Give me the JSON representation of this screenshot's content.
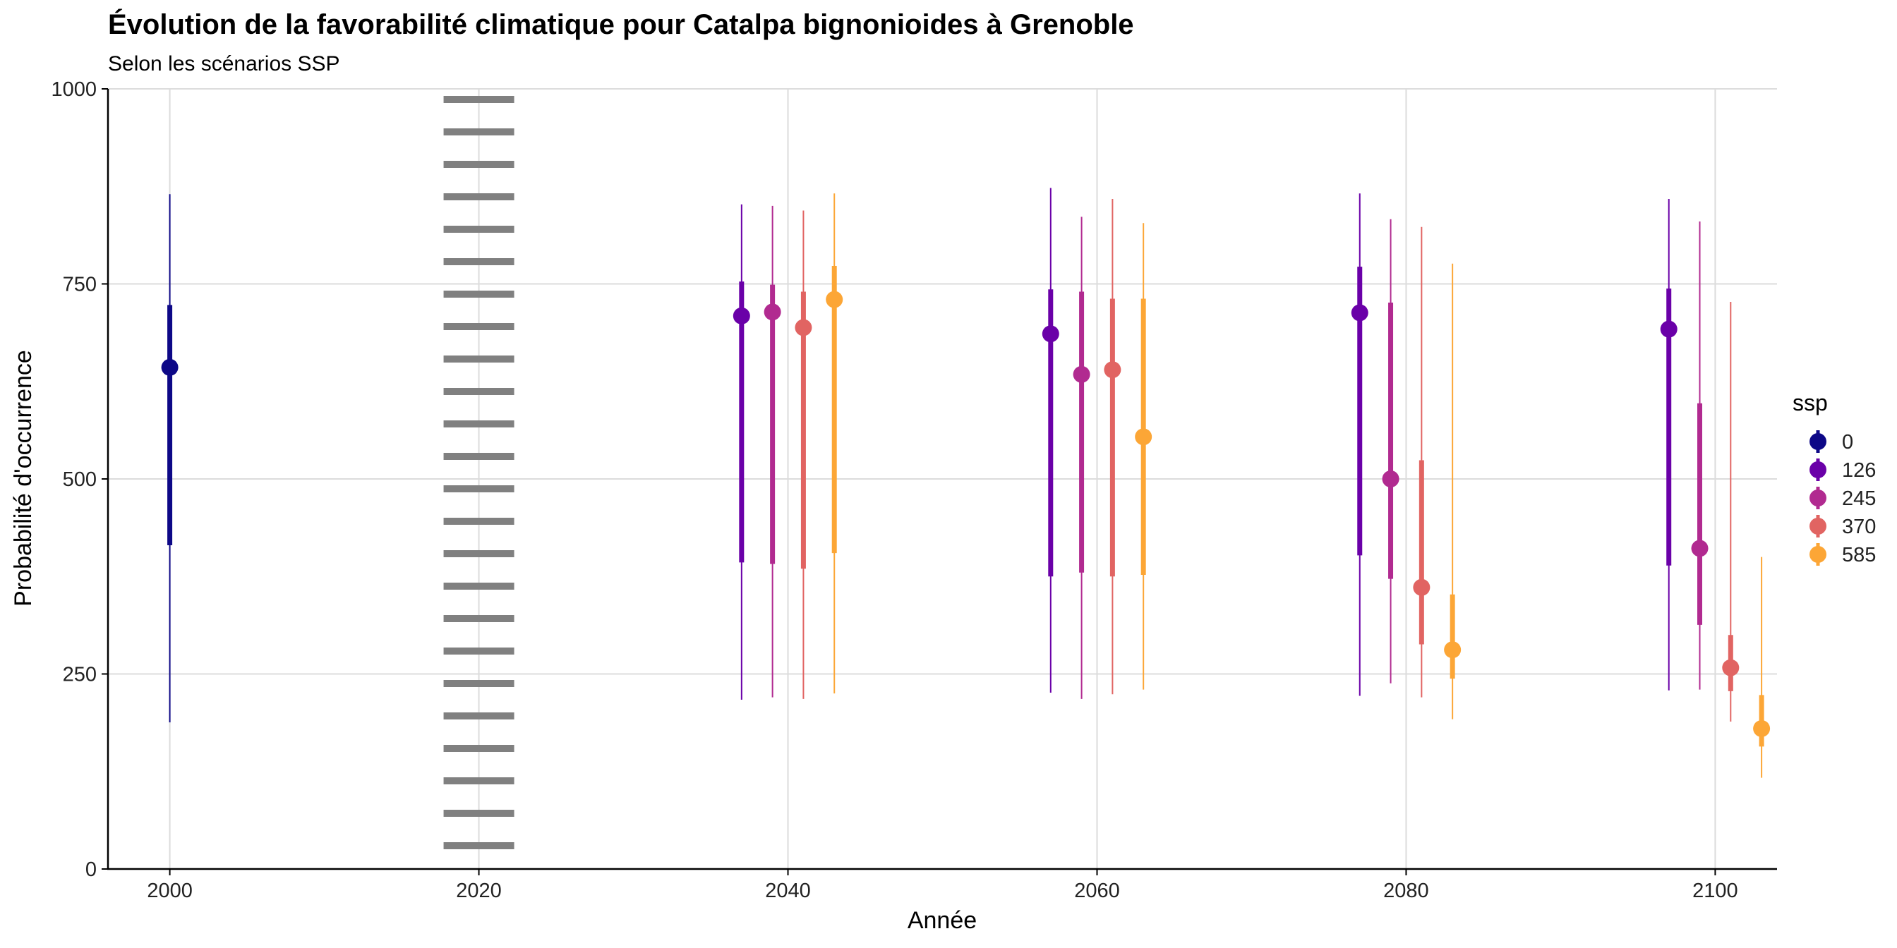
{
  "chart_data": {
    "type": "scatter",
    "title": "Évolution de la favorabilité climatique pour Catalpa bignonioides à Grenoble",
    "subtitle": "Selon les scénarios SSP",
    "xlabel": "Année",
    "ylabel": "Probabilité d'occurrence",
    "xlim": [
      1996,
      2104
    ],
    "ylim": [
      0,
      1000
    ],
    "x_ticks": [
      2000,
      2020,
      2040,
      2060,
      2080,
      2100
    ],
    "y_ticks": [
      0,
      250,
      500,
      750,
      1000
    ],
    "grid": true,
    "reference_line": {
      "x": 2020,
      "style": "dotted",
      "color": "#808080"
    },
    "legend": {
      "title": "ssp",
      "position": "right",
      "entries": [
        "0",
        "126",
        "245",
        "370",
        "585"
      ],
      "colors": [
        "#0D0887",
        "#6A00A8",
        "#B12A90",
        "#E16462",
        "#FCA636"
      ]
    },
    "series": [
      {
        "name": "0",
        "color": "#0D0887",
        "points": [
          {
            "x": 2000,
            "y": 643,
            "inner": [
              415,
              723
            ],
            "outer": [
              188,
              865
            ]
          }
        ]
      },
      {
        "name": "126",
        "color": "#6A00A8",
        "points": [
          {
            "x": 2037,
            "y": 709,
            "inner": [
              393,
              753
            ],
            "outer": [
              217,
              852
            ]
          },
          {
            "x": 2057,
            "y": 686,
            "inner": [
              375,
              743
            ],
            "outer": [
              226,
              873
            ]
          },
          {
            "x": 2077,
            "y": 713,
            "inner": [
              402,
              772
            ],
            "outer": [
              222,
              866
            ]
          },
          {
            "x": 2097,
            "y": 692,
            "inner": [
              389,
              744
            ],
            "outer": [
              229,
              859
            ]
          }
        ]
      },
      {
        "name": "245",
        "color": "#B12A90",
        "points": [
          {
            "x": 2039,
            "y": 714,
            "inner": [
              391,
              749
            ],
            "outer": [
              220,
              850
            ]
          },
          {
            "x": 2059,
            "y": 634,
            "inner": [
              380,
              740
            ],
            "outer": [
              218,
              836
            ]
          },
          {
            "x": 2079,
            "y": 500,
            "inner": [
              372,
              726
            ],
            "outer": [
              238,
              833
            ]
          },
          {
            "x": 2099,
            "y": 411,
            "inner": [
              313,
              597
            ],
            "outer": [
              230,
              830
            ]
          }
        ]
      },
      {
        "name": "370",
        "color": "#E16462",
        "points": [
          {
            "x": 2041,
            "y": 694,
            "inner": [
              385,
              740
            ],
            "outer": [
              218,
              844
            ]
          },
          {
            "x": 2061,
            "y": 640,
            "inner": [
              375,
              731
            ],
            "outer": [
              224,
              859
            ]
          },
          {
            "x": 2081,
            "y": 361,
            "inner": [
              288,
              524
            ],
            "outer": [
              220,
              823
            ]
          },
          {
            "x": 2101,
            "y": 258,
            "inner": [
              228,
              300
            ],
            "outer": [
              189,
              727
            ]
          }
        ]
      },
      {
        "name": "585",
        "color": "#FCA636",
        "points": [
          {
            "x": 2043,
            "y": 730,
            "inner": [
              405,
              773
            ],
            "outer": [
              225,
              866
            ]
          },
          {
            "x": 2063,
            "y": 554,
            "inner": [
              377,
              731
            ],
            "outer": [
              230,
              828
            ]
          },
          {
            "x": 2083,
            "y": 281,
            "inner": [
              244,
              352
            ],
            "outer": [
              192,
              776
            ]
          },
          {
            "x": 2103,
            "y": 180,
            "inner": [
              157,
              223
            ],
            "outer": [
              117,
              400
            ]
          }
        ]
      }
    ]
  }
}
